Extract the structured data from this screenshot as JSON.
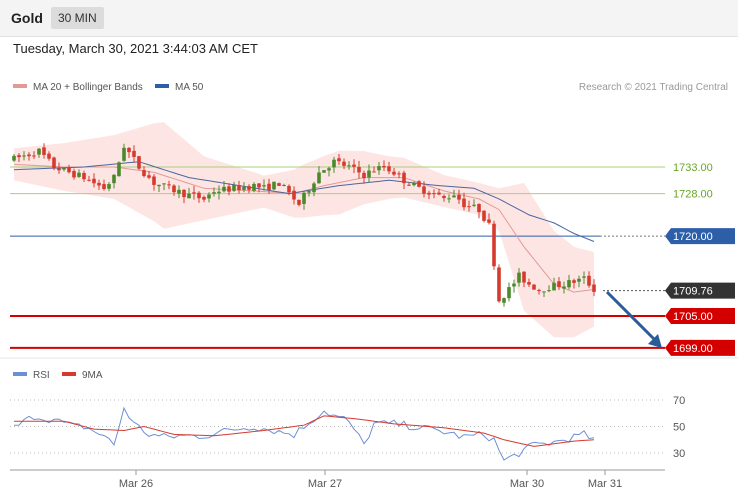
{
  "header": {
    "symbol": "Gold",
    "timeframe": "30 MIN",
    "datetime": "Tuesday, March 30, 2021 3:44:03 AM CET"
  },
  "legend": {
    "ma20_bb": "MA 20 + Bollinger Bands",
    "ma50": "MA 50",
    "copyright": "Research © 2021 Trading Central"
  },
  "rsi_legend": {
    "rsi": "RSI",
    "ma9": "9MA"
  },
  "colors": {
    "bull": "#4a8a2c",
    "bear": "#d63a2e",
    "ma20": "#e29a96",
    "bands": "#fde1df",
    "ma50": "#4a66a0",
    "resistance": "#a9d07a",
    "pivot": "#2d5fa9",
    "support": "#d40000",
    "last": "#333333",
    "arrow": "#2b5c9a",
    "rsi": "#6d8fd6",
    "rsi_ma": "#d63a2e"
  },
  "chart_data": [
    {
      "type": "candlestick",
      "title": "",
      "xlabel": "",
      "ylabel": "",
      "ylim": [
        1697,
        1747
      ],
      "x_ticks": [
        "Mar 26",
        "Mar 27",
        "Mar 30",
        "Mar 31"
      ],
      "last_price": 1709.76,
      "levels": [
        {
          "label": "1733.00",
          "value": 1733.0,
          "kind": "resistance"
        },
        {
          "label": "1728.00",
          "value": 1728.0,
          "kind": "resistance"
        },
        {
          "label": "1720.00",
          "value": 1720.0,
          "kind": "pivot"
        },
        {
          "label": "1709.76",
          "value": 1709.76,
          "kind": "last"
        },
        {
          "label": "1705.00",
          "value": 1705.0,
          "kind": "support"
        },
        {
          "label": "1699.00",
          "value": 1699.0,
          "kind": "support"
        }
      ],
      "anchors": [
        [
          0,
          1734.5
        ],
        [
          5,
          1736
        ],
        [
          8,
          1733
        ],
        [
          14,
          1731
        ],
        [
          18,
          1729
        ],
        [
          20,
          1731
        ],
        [
          22,
          1737
        ],
        [
          25,
          1733
        ],
        [
          28,
          1730
        ],
        [
          31,
          1729
        ],
        [
          34,
          1728
        ],
        [
          38,
          1727
        ],
        [
          40,
          1728.5
        ],
        [
          44,
          1729
        ],
        [
          48,
          1729.5
        ],
        [
          50,
          1729
        ],
        [
          53,
          1730
        ],
        [
          55,
          1728
        ],
        [
          57,
          1726
        ],
        [
          59,
          1729
        ],
        [
          61,
          1732
        ],
        [
          64,
          1734
        ],
        [
          67,
          1733
        ],
        [
          70,
          1731.5
        ],
        [
          72,
          1732.5
        ],
        [
          74,
          1733
        ],
        [
          76,
          1732
        ],
        [
          78,
          1730.5
        ],
        [
          81,
          1729
        ],
        [
          84,
          1728
        ],
        [
          86,
          1727
        ],
        [
          88,
          1728
        ],
        [
          90,
          1726
        ],
        [
          93,
          1725
        ],
        [
          95,
          1722
        ],
        [
          97,
          1708
        ],
        [
          99,
          1710
        ],
        [
          101,
          1712.5
        ],
        [
          103,
          1711
        ],
        [
          105,
          1710
        ],
        [
          107,
          1710.5
        ],
        [
          110,
          1711
        ],
        [
          112,
          1711.5
        ],
        [
          114,
          1712
        ],
        [
          116,
          1710
        ]
      ],
      "ma50_anchors": [
        [
          0,
          1732.5
        ],
        [
          14,
          1733
        ],
        [
          25,
          1734
        ],
        [
          35,
          1731
        ],
        [
          45,
          1729.5
        ],
        [
          55,
          1728
        ],
        [
          65,
          1729.5
        ],
        [
          75,
          1730.5
        ],
        [
          85,
          1729.5
        ],
        [
          92,
          1729
        ],
        [
          97,
          1727
        ],
        [
          103,
          1724
        ],
        [
          108,
          1722.5
        ],
        [
          112,
          1720.5
        ],
        [
          116,
          1719
        ]
      ],
      "ma20_anchors": [
        [
          0,
          1733.5
        ],
        [
          10,
          1733
        ],
        [
          20,
          1733
        ],
        [
          28,
          1732
        ],
        [
          38,
          1729
        ],
        [
          48,
          1728.5
        ],
        [
          56,
          1728
        ],
        [
          62,
          1729.5
        ],
        [
          70,
          1731
        ],
        [
          78,
          1731
        ],
        [
          86,
          1728.5
        ],
        [
          93,
          1727
        ],
        [
          97,
          1725
        ],
        [
          102,
          1718
        ],
        [
          108,
          1711
        ],
        [
          112,
          1709.5
        ],
        [
          116,
          1710
        ]
      ],
      "band_width_anchors": [
        [
          0,
          3
        ],
        [
          20,
          6
        ],
        [
          30,
          10
        ],
        [
          38,
          6
        ],
        [
          50,
          3
        ],
        [
          58,
          5
        ],
        [
          65,
          6
        ],
        [
          75,
          4
        ],
        [
          86,
          3
        ],
        [
          93,
          3
        ],
        [
          97,
          4
        ],
        [
          102,
          12
        ],
        [
          108,
          10
        ],
        [
          116,
          7
        ]
      ]
    },
    {
      "type": "line",
      "title": "",
      "ylim": [
        20,
        80
      ],
      "y_ticks": [
        30,
        50,
        70
      ],
      "anchors": [
        [
          0,
          49
        ],
        [
          4,
          58
        ],
        [
          8,
          55
        ],
        [
          12,
          50
        ],
        [
          14,
          50
        ],
        [
          18,
          43
        ],
        [
          20,
          36
        ],
        [
          22,
          64
        ],
        [
          24,
          52
        ],
        [
          27,
          44
        ],
        [
          30,
          42
        ],
        [
          34,
          43
        ],
        [
          38,
          43
        ],
        [
          44,
          48
        ],
        [
          48,
          50
        ],
        [
          52,
          47
        ],
        [
          56,
          44
        ],
        [
          60,
          56
        ],
        [
          62,
          62
        ],
        [
          64,
          58
        ],
        [
          66,
          56
        ],
        [
          68,
          48
        ],
        [
          70,
          36
        ],
        [
          72,
          52
        ],
        [
          76,
          52
        ],
        [
          80,
          50
        ],
        [
          86,
          46
        ],
        [
          90,
          42
        ],
        [
          94,
          44
        ],
        [
          96,
          40
        ],
        [
          98,
          24
        ],
        [
          100,
          28
        ],
        [
          104,
          36
        ],
        [
          108,
          38
        ],
        [
          112,
          42
        ],
        [
          114,
          44
        ],
        [
          116,
          40
        ]
      ],
      "ma_anchors": [
        [
          0,
          54
        ],
        [
          10,
          54
        ],
        [
          16,
          48
        ],
        [
          22,
          47
        ],
        [
          26,
          50
        ],
        [
          32,
          44
        ],
        [
          40,
          43
        ],
        [
          50,
          47
        ],
        [
          58,
          51
        ],
        [
          62,
          58
        ],
        [
          68,
          56
        ],
        [
          76,
          52
        ],
        [
          86,
          49
        ],
        [
          94,
          45
        ],
        [
          98,
          40
        ],
        [
          104,
          35
        ],
        [
          112,
          39
        ],
        [
          116,
          40
        ]
      ]
    }
  ]
}
